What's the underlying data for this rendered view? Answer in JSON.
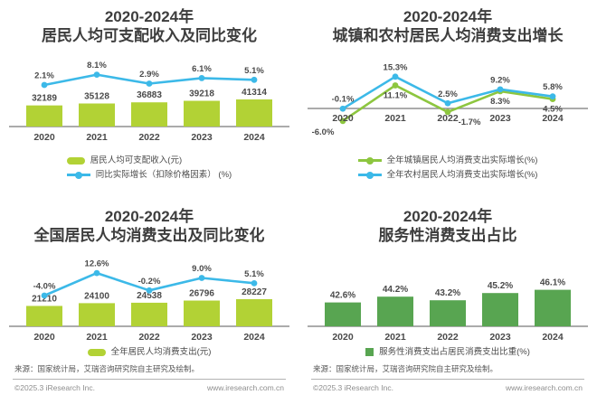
{
  "colors": {
    "yellow_green": "#b2d235",
    "apple_green": "#8dc63f",
    "mid_green": "#58a551",
    "blue": "#3cb9e8",
    "title_text": "#3d3d3d",
    "label_text": "#4a4a4a",
    "axis": "#8f8f8f"
  },
  "source_note": "来源：国家统计局，艾瑞咨询研究院自主研究及绘制。",
  "footer": {
    "copyright": "©2025.3 iResearch Inc.",
    "website": "www.iresearch.com.cn"
  },
  "chart_data": [
    {
      "id": "disposable-income",
      "type": "bar+line",
      "title_lines": [
        "2020-2024年",
        "居民人均可支配收入及同比变化"
      ],
      "categories": [
        "2020",
        "2021",
        "2022",
        "2023",
        "2024"
      ],
      "grid": false,
      "legend_position": "bottom",
      "series": [
        {
          "kind": "bar",
          "marker": "pill",
          "name": "居民人均可支配收入(元)",
          "values": [
            32189,
            35128,
            36883,
            39218,
            41314
          ],
          "color": "#b2d235"
        },
        {
          "kind": "line",
          "marker": "line-dot",
          "name": "同比实际增长（扣除价格因素） (%)",
          "values": [
            2.1,
            8.1,
            2.9,
            6.1,
            5.1
          ],
          "suffix": "%",
          "color": "#3cb9e8",
          "label_side": "above"
        }
      ]
    },
    {
      "id": "urban-rural-growth",
      "type": "line",
      "title_lines": [
        "2020-2024年",
        "城镇和农村居民人均消费支出增长"
      ],
      "categories": [
        "2020",
        "2021",
        "2022",
        "2023",
        "2024"
      ],
      "grid": false,
      "legend_position": "bottom",
      "ylim": [
        -8,
        17
      ],
      "series": [
        {
          "kind": "line",
          "marker": "line-dot",
          "name": "全年城镇居民人均消费支出实际增长(%)",
          "values": [
            -6.0,
            11.1,
            -1.7,
            8.3,
            4.5
          ],
          "suffix": "%",
          "color": "#8dc63f",
          "label_side": "below"
        },
        {
          "kind": "line",
          "marker": "line-dot",
          "name": "全年农村居民人均消费支出实际增长(%)",
          "values": [
            -0.1,
            15.3,
            2.5,
            9.2,
            5.8
          ],
          "suffix": "%",
          "color": "#3cb9e8",
          "label_side": "above"
        }
      ]
    },
    {
      "id": "national-consumption",
      "type": "bar+line",
      "title_lines": [
        "2020-2024年",
        "全国居民人均消费支出及同比变化"
      ],
      "categories": [
        "2020",
        "2021",
        "2022",
        "2023",
        "2024"
      ],
      "grid": false,
      "legend_position": "bottom",
      "series": [
        {
          "kind": "bar",
          "marker": "pill",
          "name": "全年居民人均消费支出(元)",
          "values": [
            21210,
            24100,
            24538,
            26796,
            28227
          ],
          "color": "#b2d235"
        },
        {
          "kind": "line",
          "marker": "line-dot",
          "name": "",
          "values": [
            -4.0,
            12.6,
            -0.2,
            9.0,
            5.1
          ],
          "suffix": "%",
          "color": "#3cb9e8",
          "label_side": "above"
        }
      ]
    },
    {
      "id": "services-share",
      "type": "bar",
      "title_lines": [
        "2020-2024年",
        "服务性消费支出占比"
      ],
      "categories": [
        "2020",
        "2021",
        "2022",
        "2023",
        "2024"
      ],
      "grid": false,
      "legend_position": "bottom",
      "ylim": [
        36,
        48
      ],
      "series": [
        {
          "kind": "bar",
          "marker": "square",
          "name": "服务性消费支出占居民消费支出比重(%)",
          "values": [
            42.6,
            44.2,
            43.2,
            45.2,
            46.1
          ],
          "suffix": "%",
          "color": "#58a551"
        }
      ]
    }
  ]
}
